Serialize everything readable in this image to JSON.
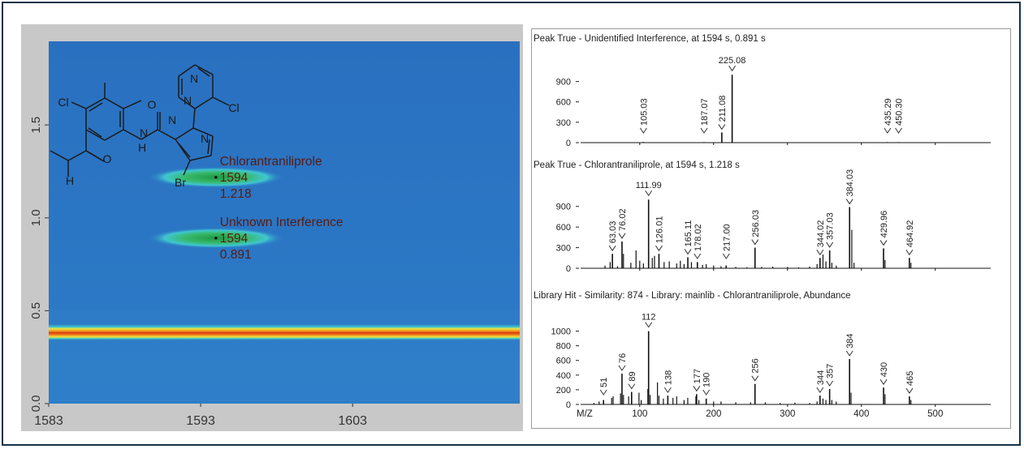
{
  "colors": {
    "frame": "#16324a",
    "plot_background": "#2a74c2",
    "panel_background": "#c8c8c8",
    "peak_green": "#21a354",
    "band_orange": "#f08a1e",
    "band_red": "#d93a10",
    "band_yellow": "#f2e23a",
    "spectrum_line": "#111111"
  },
  "contour": {
    "chart_data": {
      "type": "heatmap",
      "x_ticks": [
        "1583",
        "1593",
        "1603"
      ],
      "y_ticks": [
        "0.0",
        "0.5",
        "1.0",
        "1.5"
      ],
      "xlim": [
        1583,
        1614
      ],
      "ylim": [
        0.0,
        1.95
      ],
      "peaks": [
        {
          "name": "Chlorantraniliprole",
          "rt1_label": "1594",
          "rt2_label": "1.218",
          "rt1": 1594,
          "rt2": 1.218
        },
        {
          "name": "Unknown Interference",
          "rt1_label": "1594",
          "rt2_label": "0.891",
          "rt1": 1594,
          "rt2": 0.891
        }
      ],
      "column_bleed_band_y": 0.385
    },
    "structure_labels": [
      "Cl",
      "N",
      "Cl",
      "N",
      "H",
      "N",
      "O",
      "N",
      "H",
      "O",
      "Br",
      "N"
    ]
  },
  "spectra": {
    "xlabel": "M/Z",
    "x_ticks": [
      "100",
      "200",
      "300",
      "400",
      "500"
    ],
    "xlim": [
      20,
      575
    ],
    "chart_data": [
      {
        "type": "bar",
        "title": "Peak True - Unidentified Interference, at 1594 s, 0.891 s",
        "y_ticks": [
          "0",
          "300",
          "600",
          "900"
        ],
        "ylim": [
          0,
          1050
        ],
        "peaks": [
          {
            "mz": 105.03,
            "intensity": 10,
            "label": "105.03"
          },
          {
            "mz": 187.07,
            "intensity": 8,
            "label": "187.07"
          },
          {
            "mz": 211.08,
            "intensity": 150,
            "label": "211.08"
          },
          {
            "mz": 225.08,
            "intensity": 1000,
            "label": "225.08"
          },
          {
            "mz": 435.29,
            "intensity": 8,
            "label": "435.29"
          },
          {
            "mz": 450.3,
            "intensity": 8,
            "label": "450.30"
          }
        ]
      },
      {
        "type": "bar",
        "title": "Peak True - Chlorantraniliprole, at 1594 s, 1.218 s",
        "y_ticks": [
          "0",
          "300",
          "600",
          "900"
        ],
        "ylim": [
          0,
          1050
        ],
        "peaks": [
          {
            "mz": 63.03,
            "intensity": 210,
            "label": "63.03"
          },
          {
            "mz": 76.02,
            "intensity": 390,
            "label": "76.02"
          },
          {
            "mz": 111.99,
            "intensity": 1000,
            "label": "111.99"
          },
          {
            "mz": 126.01,
            "intensity": 210,
            "label": "126.01"
          },
          {
            "mz": 165.11,
            "intensity": 160,
            "label": "165.11"
          },
          {
            "mz": 178.02,
            "intensity": 90,
            "label": "178.02"
          },
          {
            "mz": 217.0,
            "intensity": 40,
            "label": "217.00"
          },
          {
            "mz": 256.03,
            "intensity": 300,
            "label": "256.03"
          },
          {
            "mz": 344.02,
            "intensity": 150,
            "label": "344.02"
          },
          {
            "mz": 357.03,
            "intensity": 260,
            "label": "357.03"
          },
          {
            "mz": 384.03,
            "intensity": 890,
            "label": "384.03"
          },
          {
            "mz": 429.96,
            "intensity": 290,
            "label": "429.96"
          },
          {
            "mz": 464.92,
            "intensity": 150,
            "label": "464.92"
          }
        ],
        "minor": [
          [
            53,
            40
          ],
          [
            60,
            90
          ],
          [
            70,
            30
          ],
          [
            78,
            210
          ],
          [
            88,
            80
          ],
          [
            95,
            260
          ],
          [
            100,
            110
          ],
          [
            105,
            70
          ],
          [
            117,
            150
          ],
          [
            120,
            180
          ],
          [
            133,
            90
          ],
          [
            140,
            100
          ],
          [
            150,
            70
          ],
          [
            155,
            110
          ],
          [
            160,
            60
          ],
          [
            170,
            90
          ],
          [
            185,
            50
          ],
          [
            190,
            60
          ],
          [
            200,
            40
          ],
          [
            210,
            30
          ],
          [
            230,
            20
          ],
          [
            245,
            15
          ],
          [
            265,
            20
          ],
          [
            280,
            25
          ],
          [
            300,
            20
          ],
          [
            315,
            15
          ],
          [
            330,
            25
          ],
          [
            340,
            60
          ],
          [
            348,
            200
          ],
          [
            352,
            100
          ],
          [
            360,
            80
          ],
          [
            366,
            40
          ],
          [
            387,
            560
          ],
          [
            390,
            80
          ],
          [
            432,
            120
          ],
          [
            467,
            80
          ]
        ]
      },
      {
        "type": "bar",
        "title": "Library Hit - Similarity: 874 - Library: mainlib - Chlorantraniliprole, Abundance",
        "y_ticks": [
          "0",
          "200",
          "400",
          "600",
          "800",
          "1000"
        ],
        "ylim": [
          0,
          1050
        ],
        "peaks": [
          {
            "mz": 51,
            "intensity": 60,
            "label": "51"
          },
          {
            "mz": 76,
            "intensity": 420,
            "label": "76"
          },
          {
            "mz": 89,
            "intensity": 170,
            "label": "89"
          },
          {
            "mz": 112,
            "intensity": 999,
            "label": "112"
          },
          {
            "mz": 138,
            "intensity": 120,
            "label": "138"
          },
          {
            "mz": 177,
            "intensity": 140,
            "label": "177"
          },
          {
            "mz": 190,
            "intensity": 80,
            "label": "190"
          },
          {
            "mz": 256,
            "intensity": 280,
            "label": "256"
          },
          {
            "mz": 344,
            "intensity": 120,
            "label": "344"
          },
          {
            "mz": 357,
            "intensity": 210,
            "label": "357"
          },
          {
            "mz": 384,
            "intensity": 620,
            "label": "384"
          },
          {
            "mz": 430,
            "intensity": 230,
            "label": "430"
          },
          {
            "mz": 465,
            "intensity": 110,
            "label": "465"
          }
        ],
        "minor": [
          [
            38,
            20
          ],
          [
            45,
            40
          ],
          [
            62,
            90
          ],
          [
            64,
            110
          ],
          [
            74,
            150
          ],
          [
            78,
            130
          ],
          [
            85,
            110
          ],
          [
            99,
            160
          ],
          [
            102,
            60
          ],
          [
            111,
            210
          ],
          [
            114,
            130
          ],
          [
            124,
            300
          ],
          [
            126,
            120
          ],
          [
            132,
            80
          ],
          [
            145,
            90
          ],
          [
            150,
            110
          ],
          [
            160,
            60
          ],
          [
            165,
            90
          ],
          [
            176,
            110
          ],
          [
            180,
            60
          ],
          [
            200,
            40
          ],
          [
            210,
            40
          ],
          [
            230,
            30
          ],
          [
            250,
            30
          ],
          [
            270,
            30
          ],
          [
            290,
            20
          ],
          [
            310,
            25
          ],
          [
            330,
            20
          ],
          [
            340,
            40
          ],
          [
            348,
            80
          ],
          [
            352,
            60
          ],
          [
            360,
            60
          ],
          [
            366,
            40
          ],
          [
            386,
            160
          ],
          [
            432,
            140
          ],
          [
            467,
            60
          ]
        ]
      }
    ]
  }
}
